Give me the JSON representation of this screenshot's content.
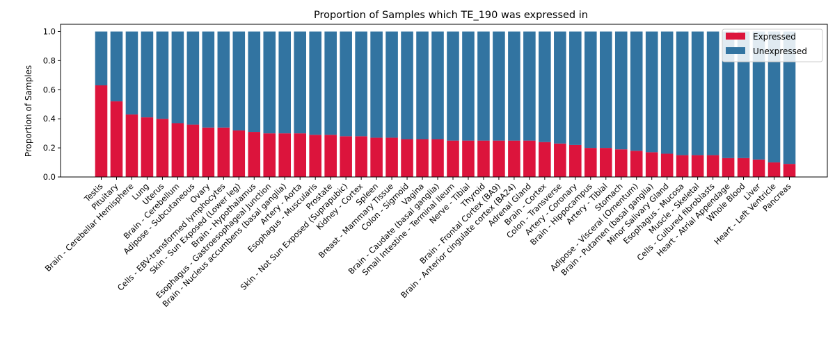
{
  "chart_data": {
    "type": "bar",
    "stacked": true,
    "title": "Proportion of Samples which TE_190 was expressed in",
    "xlabel": "",
    "ylabel": "Proportion of Samples",
    "ylim": [
      0,
      1.05
    ],
    "yticks": [
      "0.0",
      "0.2",
      "0.4",
      "0.6",
      "0.8",
      "1.0"
    ],
    "legend_position": "top-right",
    "categories": [
      "Testis",
      "Pituitary",
      "Brain - Cerebellar Hemisphere",
      "Lung",
      "Uterus",
      "Brain - Cerebellum",
      "Adipose - Subcutaneous",
      "Ovary",
      "Cells - EBV-transformed lymphocytes",
      "Skin - Sun Exposed (Lower leg)",
      "Brain - Hypothalamus",
      "Esophagus - Gastroesophageal Junction",
      "Brain - Nucleus accumbens (basal ganglia)",
      "Artery - Aorta",
      "Esophagus - Muscularis",
      "Prostate",
      "Skin - Not Sun Exposed (Suprapubic)",
      "Kidney - Cortex",
      "Spleen",
      "Breast - Mammary Tissue",
      "Colon - Sigmoid",
      "Vagina",
      "Brain - Caudate (basal ganglia)",
      "Small Intestine - Terminal Ileum",
      "Nerve - Tibial",
      "Thyroid",
      "Brain - Frontal Cortex (BA9)",
      "Brain - Anterior cingulate cortex (BA24)",
      "Adrenal Gland",
      "Brain - Cortex",
      "Colon - Transverse",
      "Artery - Coronary",
      "Brain - Hippocampus",
      "Artery - Tibial",
      "Stomach",
      "Adipose - Visceral (Omentum)",
      "Brain - Putamen (basal ganglia)",
      "Minor Salivary Gland",
      "Esophagus - Mucosa",
      "Muscle - Skeletal",
      "Cells - Cultured fibroblasts",
      "Heart - Atrial Appendage",
      "Whole Blood",
      "Liver",
      "Heart - Left Ventricle",
      "Pancreas"
    ],
    "series": [
      {
        "name": "Expressed",
        "color": "#dc143c",
        "values": [
          0.63,
          0.52,
          0.43,
          0.41,
          0.4,
          0.37,
          0.36,
          0.34,
          0.34,
          0.32,
          0.31,
          0.3,
          0.3,
          0.3,
          0.29,
          0.29,
          0.28,
          0.28,
          0.27,
          0.27,
          0.26,
          0.26,
          0.26,
          0.25,
          0.25,
          0.25,
          0.25,
          0.25,
          0.25,
          0.24,
          0.23,
          0.22,
          0.2,
          0.2,
          0.19,
          0.18,
          0.17,
          0.16,
          0.15,
          0.15,
          0.15,
          0.13,
          0.13,
          0.12,
          0.1,
          0.09
        ]
      },
      {
        "name": "Unexpressed",
        "color": "#3274a1",
        "values": [
          0.37,
          0.48,
          0.57,
          0.59,
          0.6,
          0.63,
          0.64,
          0.66,
          0.66,
          0.68,
          0.69,
          0.7,
          0.7,
          0.7,
          0.71,
          0.71,
          0.72,
          0.72,
          0.73,
          0.73,
          0.74,
          0.74,
          0.74,
          0.75,
          0.75,
          0.75,
          0.75,
          0.75,
          0.75,
          0.76,
          0.77,
          0.78,
          0.8,
          0.8,
          0.81,
          0.82,
          0.83,
          0.84,
          0.85,
          0.85,
          0.85,
          0.87,
          0.87,
          0.88,
          0.9,
          0.91
        ]
      }
    ]
  }
}
